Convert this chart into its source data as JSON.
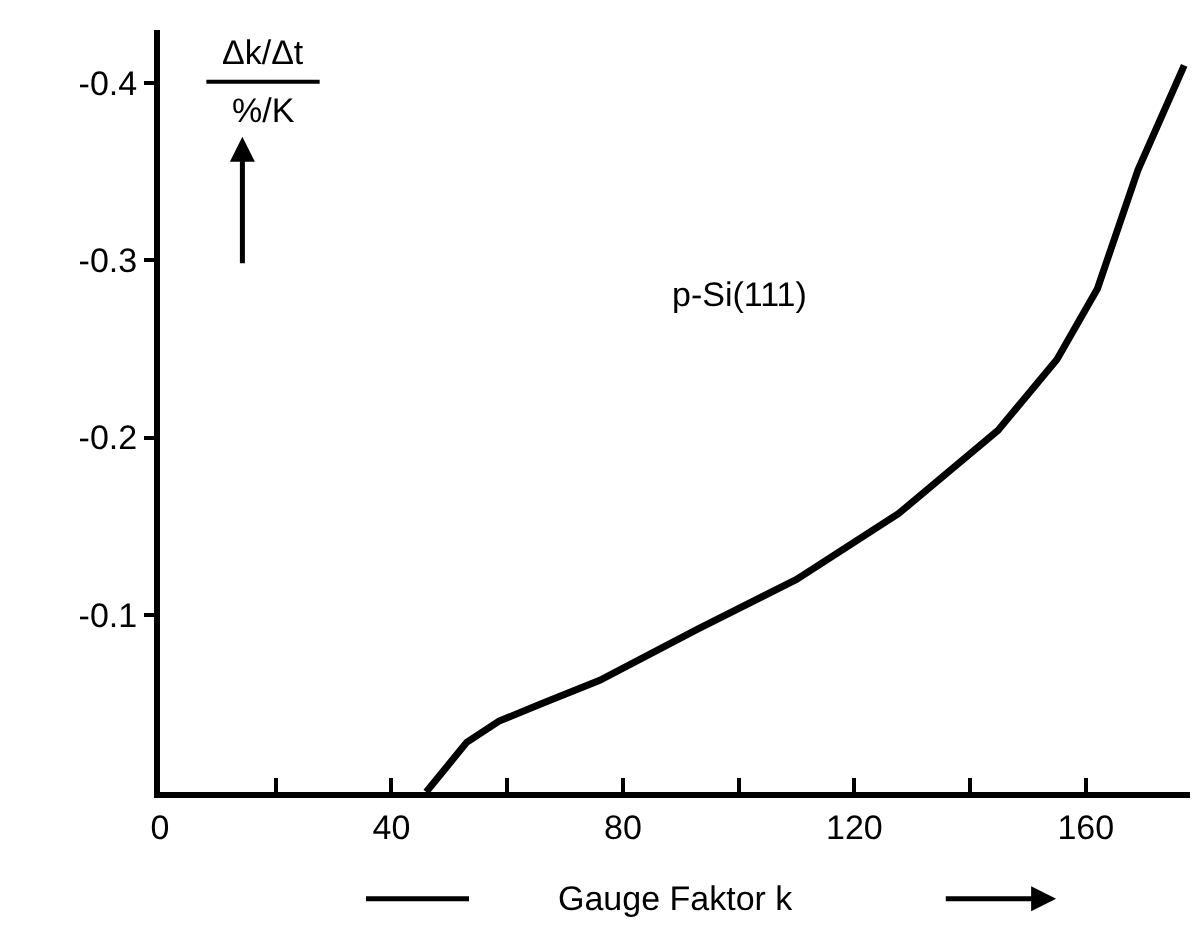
{
  "chart_data": {
    "type": "line",
    "xlabel": "Gauge Faktor k",
    "ylabel": "Δk/Δt\n%/K",
    "xlim": [
      0,
      178
    ],
    "ylim": [
      0,
      -0.43
    ],
    "xticks": [
      0,
      {
        "value": 20,
        "label": null
      },
      40,
      {
        "value": 60,
        "label": null
      },
      80,
      {
        "value": 100,
        "label": null
      },
      120,
      {
        "value": 140,
        "label": null
      },
      160
    ],
    "yticks": [
      -0.1,
      -0.2,
      -0.3,
      -0.4
    ],
    "legend": false,
    "marker": "none",
    "line_style": "solid",
    "series": [
      {
        "name": "p-Si(111)",
        "color": "#000000",
        "x": [
          46,
          49,
          53,
          58.6,
          66,
          76,
          93,
          110,
          127.6,
          144.8,
          155,
          162,
          169,
          177
        ],
        "values": [
          0,
          -0.012,
          -0.028,
          -0.04,
          -0.05,
          -0.063,
          -0.092,
          -0.12,
          -0.157,
          -0.204,
          -0.244,
          -0.284,
          -0.351,
          -0.41
        ]
      }
    ]
  }
}
